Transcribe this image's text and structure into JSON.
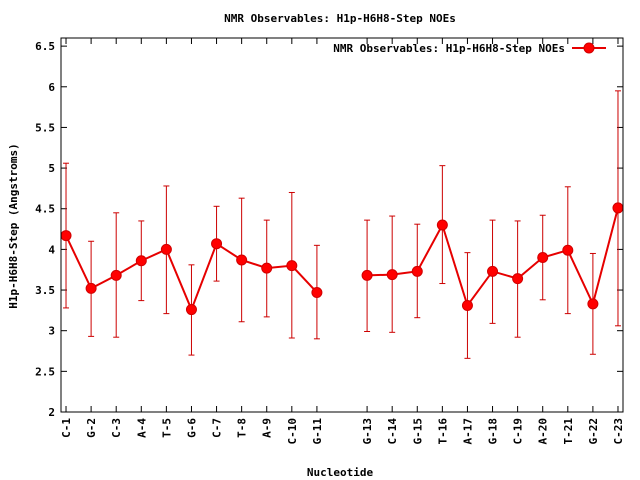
{
  "chart_data": {
    "type": "line",
    "title": "NMR Observables: H1p-H6H8-Step NOEs",
    "xlabel": "Nucleotide",
    "ylabel": "H1p-H6H8-Step (Angstroms)",
    "ylim": [
      2,
      6.6
    ],
    "yticks": [
      "2",
      "2.5",
      "3",
      "3.5",
      "4",
      "4.5",
      "5",
      "5.5",
      "6",
      "6.5"
    ],
    "xlim": [
      0.8,
      23.2
    ],
    "legend_position": "top-right",
    "grid": false,
    "colors": {
      "series": "#e60000",
      "marker": "#ff0000",
      "error": "#cc0000"
    },
    "categories": [
      "C-1",
      "G-2",
      "C-3",
      "A-4",
      "T-5",
      "G-6",
      "C-7",
      "T-8",
      "A-9",
      "C-10",
      "G-11",
      "G-13",
      "C-14",
      "G-15",
      "T-16",
      "A-17",
      "G-18",
      "C-19",
      "A-20",
      "T-21",
      "G-22",
      "C-23"
    ],
    "x": [
      1,
      2,
      3,
      4,
      5,
      6,
      7,
      8,
      9,
      10,
      11,
      13,
      14,
      15,
      16,
      17,
      18,
      19,
      20,
      21,
      22,
      23
    ],
    "series": [
      {
        "name": "NMR Observables: H1p-H6H8-Step NOEs",
        "values": [
          4.17,
          3.52,
          3.68,
          3.86,
          4.0,
          3.26,
          4.07,
          3.87,
          3.77,
          3.8,
          3.47,
          3.68,
          3.69,
          3.73,
          4.3,
          3.31,
          3.73,
          3.64,
          3.9,
          3.99,
          3.33,
          4.51
        ],
        "error_low": [
          3.28,
          2.93,
          2.92,
          3.37,
          3.21,
          2.7,
          3.61,
          3.11,
          3.17,
          2.91,
          2.9,
          2.99,
          2.98,
          3.16,
          3.58,
          2.66,
          3.09,
          2.92,
          3.38,
          3.21,
          2.71,
          3.06
        ],
        "error_high": [
          5.06,
          4.1,
          4.45,
          4.35,
          4.78,
          3.81,
          4.53,
          4.63,
          4.36,
          4.7,
          4.05,
          4.36,
          4.41,
          4.31,
          5.03,
          3.96,
          4.36,
          4.35,
          4.42,
          4.77,
          3.95,
          5.95
        ]
      }
    ]
  }
}
